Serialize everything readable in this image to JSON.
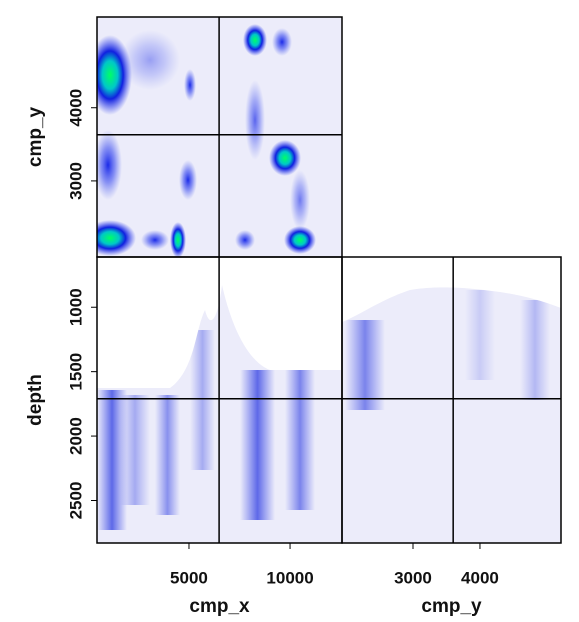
{
  "chart_data": [
    {
      "type": "heatmap",
      "ylabel": "cmp_y",
      "xlim": [
        450,
        12570
      ],
      "ylim": [
        1960,
        5240
      ],
      "yticks": [
        3000,
        4000
      ],
      "crosshair_x": 6490,
      "crosshair_y": 3630
    },
    {
      "type": "heatmap",
      "xlabel": "cmp_x",
      "ylabel": "depth",
      "xlim": [
        450,
        12570
      ],
      "ylim": [
        2830,
        610
      ],
      "xticks": [
        5000,
        10000
      ],
      "yticks": [
        1000,
        1500,
        2000,
        2500
      ],
      "crosshair_x": 6490,
      "crosshair_y": 1710
    },
    {
      "type": "heatmap",
      "xlabel": "cmp_y",
      "xlim": [
        1940,
        5210
      ],
      "ylim": [
        2830,
        610
      ],
      "xticks": [
        3000,
        4000
      ],
      "crosshair_x": 3600,
      "crosshair_y": 1710
    }
  ]
}
